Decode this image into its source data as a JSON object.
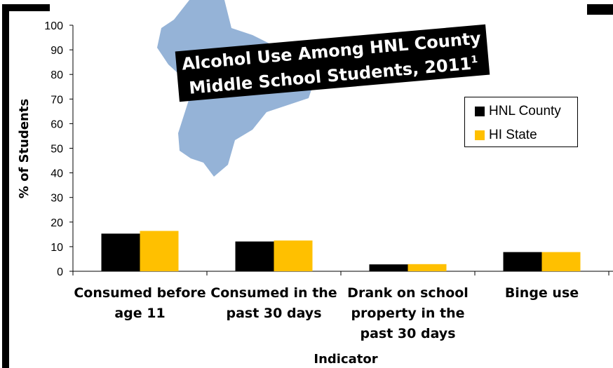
{
  "chart_data": {
    "type": "bar",
    "title_line1": "Alcohol Use Among HNL County",
    "title_line2": "Middle School Students, 2011",
    "title_superscript": "1",
    "xlabel": "Indicator",
    "ylabel": "% of Students",
    "ylim": [
      0,
      100
    ],
    "yticks": [
      0,
      10,
      20,
      30,
      40,
      50,
      60,
      70,
      80,
      90,
      100
    ],
    "categories": [
      [
        "Consumed before",
        "age 11"
      ],
      [
        "Consumed in the",
        "past 30 days"
      ],
      [
        "Drank on school",
        "property in the",
        "past 30 days"
      ],
      [
        "Binge use"
      ]
    ],
    "series": [
      {
        "name": "HNL County",
        "color": "#000000",
        "values": [
          15.3,
          12.1,
          2.8,
          7.8
        ]
      },
      {
        "name": "HI State",
        "color": "#FFC000",
        "values": [
          16.4,
          12.5,
          2.9,
          7.8
        ]
      }
    ],
    "legend_position": "top-right",
    "grid": false,
    "background_shape_color": "#95B3D7"
  }
}
